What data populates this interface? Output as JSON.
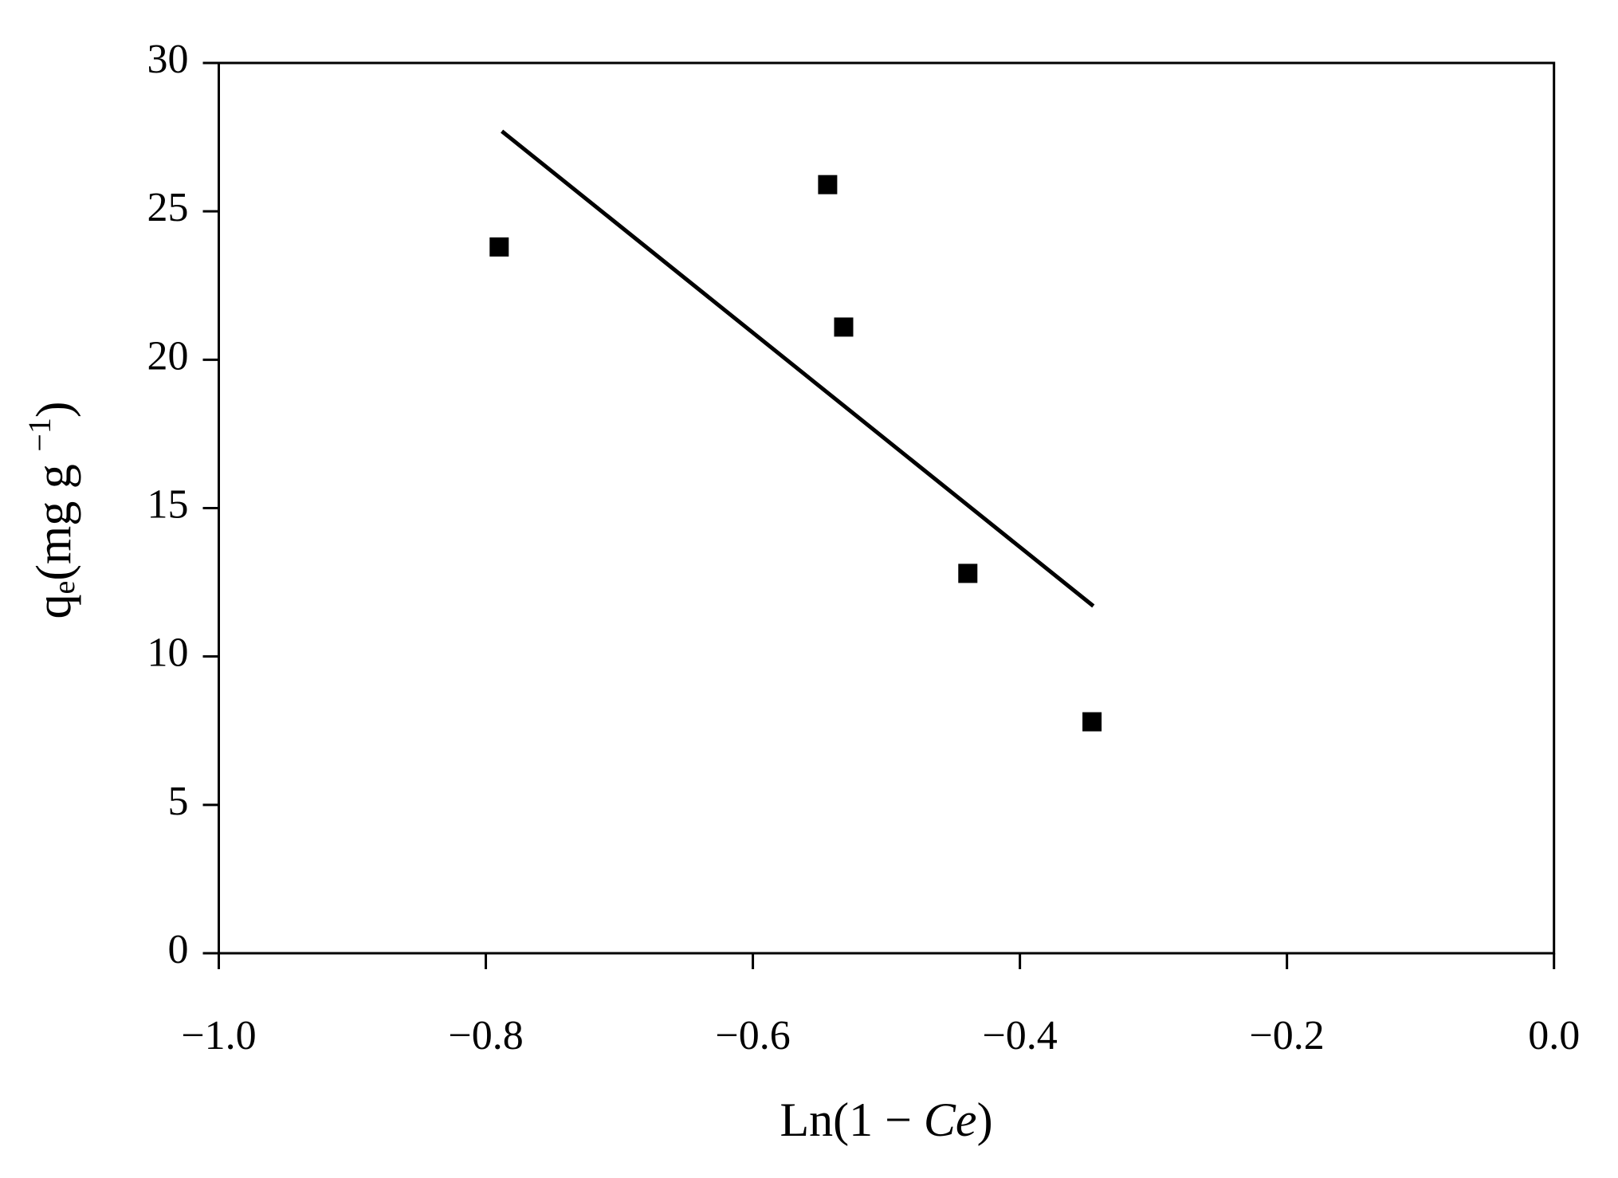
{
  "chart_data": {
    "type": "scatter",
    "xlabel_parts": [
      "Ln(1 − ",
      "Ce",
      ")"
    ],
    "ylabel_parts": [
      "q",
      "e",
      "(mg g ",
      "−1",
      ")"
    ],
    "xlim": [
      -1.0,
      0.0
    ],
    "xticks": [
      {
        "value": -1.0,
        "label": "−1.0"
      },
      {
        "value": -0.8,
        "label": "−0.8"
      },
      {
        "value": -0.6,
        "label": "−0.6"
      },
      {
        "value": -0.4,
        "label": "−0.4"
      },
      {
        "value": -0.2,
        "label": "−0.2"
      },
      {
        "value": 0.0,
        "label": "0.0"
      }
    ],
    "ylim": [
      0,
      30
    ],
    "yticks": [
      0,
      5,
      10,
      15,
      20,
      25,
      30
    ],
    "series": [
      {
        "type": "scatter",
        "color": "#000000",
        "x": [
          -0.79,
          -0.544,
          -0.532,
          -0.439,
          -0.346
        ],
        "values": [
          23.8,
          25.9,
          21.1,
          12.8,
          7.8
        ]
      },
      {
        "type": "line",
        "color": "#000000",
        "x": [
          -0.788,
          -0.345
        ],
        "values": [
          27.7,
          11.7
        ]
      }
    ]
  }
}
